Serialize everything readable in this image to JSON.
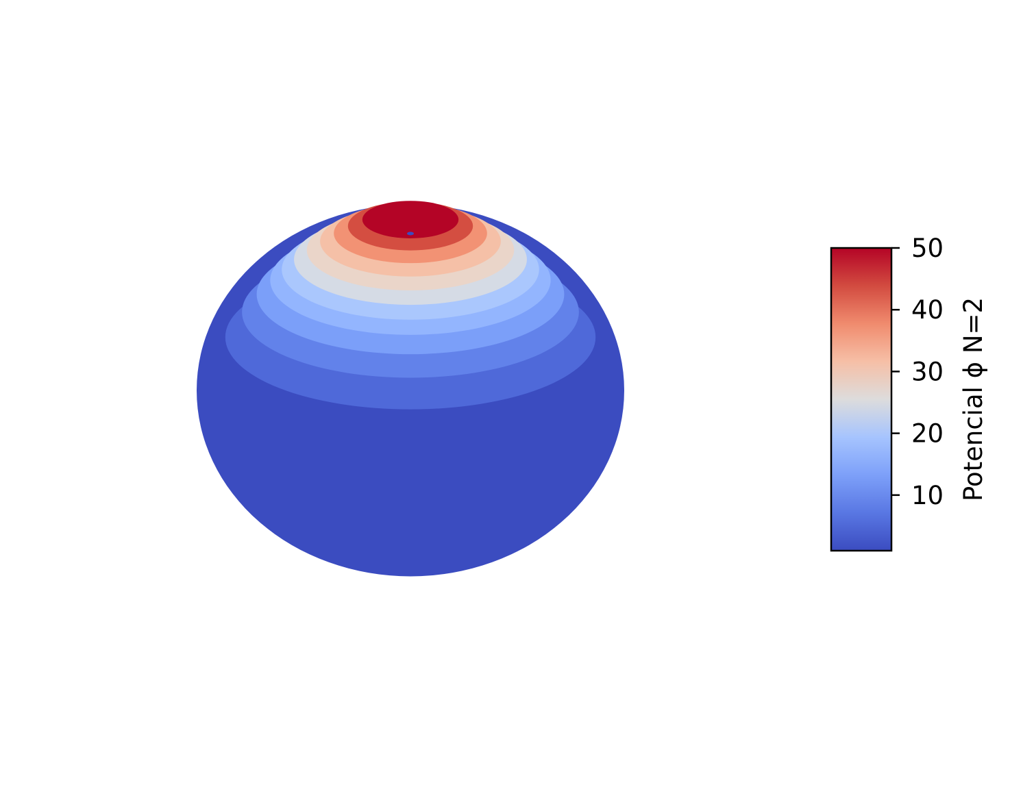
{
  "chart_data": {
    "type": "heatmap",
    "subtype": "3d-sphere-surface",
    "title": "",
    "colormap": "coolwarm",
    "colors": {
      "low": "#3b4cc0",
      "high": "#b40426"
    },
    "colorbar": {
      "label": "Potencial ϕ N=2",
      "range": [
        1,
        50
      ],
      "ticks": [
        10,
        20,
        30,
        40,
        50
      ],
      "tick_labels": [
        "10",
        "20",
        "30",
        "40",
        "50"
      ],
      "placement": "right"
    },
    "contour_bands": [
      {
        "from": 1,
        "to": 4,
        "color": "#3b4cc0"
      },
      {
        "from": 4,
        "to": 8,
        "color": "#4f69d9"
      },
      {
        "from": 8,
        "to": 12,
        "color": "#6282ea"
      },
      {
        "from": 12,
        "to": 16,
        "color": "#7b9ff9"
      },
      {
        "from": 16,
        "to": 20,
        "color": "#93b5fe"
      },
      {
        "from": 20,
        "to": 24,
        "color": "#aac7fd"
      },
      {
        "from": 24,
        "to": 28,
        "color": "#d5dbe5"
      },
      {
        "from": 28,
        "to": 32,
        "color": "#ead5c9"
      },
      {
        "from": 32,
        "to": 36,
        "color": "#f5c0a7"
      },
      {
        "from": 36,
        "to": 40,
        "color": "#f29274"
      },
      {
        "from": 40,
        "to": 45,
        "color": "#d44e41"
      },
      {
        "from": 45,
        "to": 50,
        "color": "#b40426"
      }
    ],
    "band_polar_angles_deg": [
      180,
      60,
      52,
      46,
      41,
      37,
      33,
      29,
      25,
      21,
      17,
      13,
      0
    ],
    "axes_visible": false,
    "grid": false
  }
}
